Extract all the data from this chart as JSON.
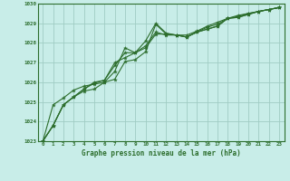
{
  "title": "Graphe pression niveau de la mer (hPa)",
  "background_color": "#c8ede8",
  "grid_color": "#a0ccc4",
  "line_color": "#2d6e2d",
  "xlim": [
    -0.5,
    23.5
  ],
  "ylim": [
    1023,
    1030
  ],
  "yticks": [
    1023,
    1024,
    1025,
    1026,
    1027,
    1028,
    1029,
    1030
  ],
  "xticks": [
    0,
    1,
    2,
    3,
    4,
    5,
    6,
    7,
    8,
    9,
    10,
    11,
    12,
    13,
    14,
    15,
    16,
    17,
    18,
    19,
    20,
    21,
    22,
    23
  ],
  "series": [
    [
      1023.0,
      1023.8,
      1024.85,
      1025.25,
      1025.55,
      1025.65,
      1026.0,
      1026.15,
      1027.05,
      1027.15,
      1027.55,
      1028.95,
      1028.45,
      1028.4,
      1028.3,
      1028.55,
      1028.7,
      1028.85,
      1029.25,
      1029.3,
      1029.45,
      1029.6,
      1029.7,
      1029.8
    ],
    [
      1023.0,
      1023.8,
      1024.85,
      1025.25,
      1025.65,
      1025.95,
      1026.1,
      1027.0,
      1027.25,
      1027.5,
      1027.75,
      1028.45,
      1028.45,
      1028.4,
      1028.3,
      1028.55,
      1028.7,
      1028.85,
      1029.25,
      1029.3,
      1029.45,
      1029.6,
      1029.7,
      1029.8
    ],
    [
      1023.0,
      1023.8,
      1024.85,
      1025.25,
      1025.65,
      1026.0,
      1026.1,
      1026.85,
      1027.5,
      1027.5,
      1028.1,
      1029.0,
      1028.5,
      1028.4,
      1028.3,
      1028.55,
      1028.8,
      1028.95,
      1029.25,
      1029.35,
      1029.5,
      1029.6,
      1029.7,
      1029.8
    ],
    [
      1023.0,
      1024.85,
      1025.2,
      1025.6,
      1025.8,
      1025.9,
      1026.0,
      1026.55,
      1027.75,
      1027.5,
      1027.85,
      1028.55,
      1028.4,
      1028.4,
      1028.4,
      1028.6,
      1028.85,
      1029.05,
      1029.25,
      1029.4,
      1029.5,
      1029.6,
      1029.7,
      1029.8
    ]
  ]
}
